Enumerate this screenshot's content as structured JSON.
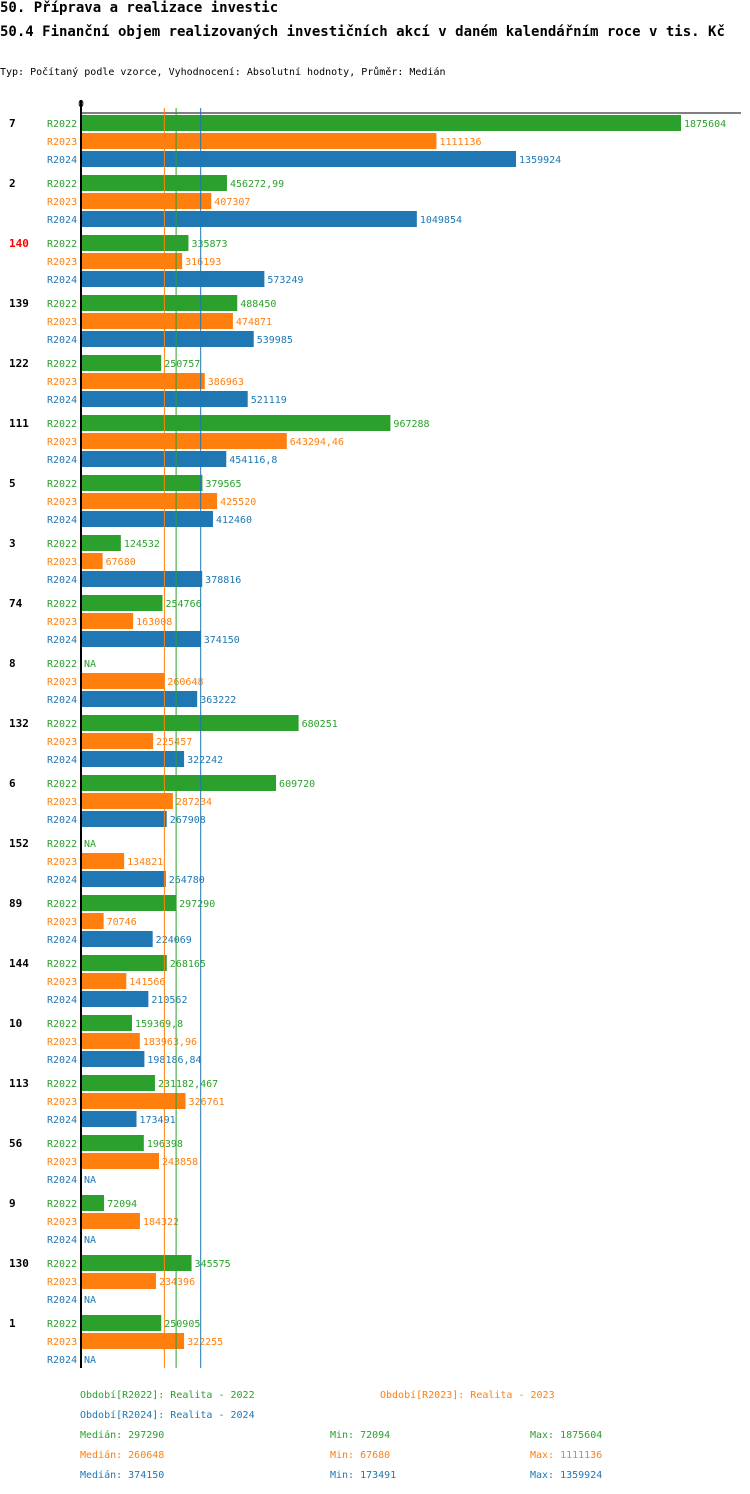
{
  "header": {
    "title": "50. Příprava a realizace investic",
    "subtitle": "50.4 Finanční objem realizovaných investičních akcí v daném kalendářním roce v tis. Kč",
    "info": "Typ: Počítaný podle vzorce, Vyhodnocení: Absolutní hodnoty, Průměr: Medián"
  },
  "colors": {
    "R2022": "#2ca02c",
    "R2023": "#ff7f0e",
    "R2024": "#1f77b4",
    "highlight": "#ff0000",
    "axis": "#000000"
  },
  "chart_data": {
    "type": "bar",
    "orientation": "horizontal",
    "axis_zero_label": "0",
    "xlim": [
      0,
      1875604
    ],
    "series_names": [
      "R2022",
      "R2023",
      "R2024"
    ],
    "highlighted_category": "140",
    "groups": [
      {
        "label": "7",
        "values": [
          1875604,
          1111136,
          1359924
        ],
        "labels": [
          "1875604",
          "1111136",
          "1359924"
        ]
      },
      {
        "label": "2",
        "values": [
          456272.99,
          407307,
          1049854
        ],
        "labels": [
          "456272,99",
          "407307",
          "1049854"
        ]
      },
      {
        "label": "140",
        "values": [
          335873,
          316193,
          573249
        ],
        "labels": [
          "335873",
          "316193",
          "573249"
        ]
      },
      {
        "label": "139",
        "values": [
          488450,
          474871,
          539985
        ],
        "labels": [
          "488450",
          "474871",
          "539985"
        ]
      },
      {
        "label": "122",
        "values": [
          250757,
          386963,
          521119
        ],
        "labels": [
          "250757",
          "386963",
          "521119"
        ]
      },
      {
        "label": "111",
        "values": [
          967288,
          643294.46,
          454116.8
        ],
        "labels": [
          "967288",
          "643294,46",
          "454116,8"
        ]
      },
      {
        "label": "5",
        "values": [
          379565,
          425520,
          412460
        ],
        "labels": [
          "379565",
          "425520",
          "412460"
        ]
      },
      {
        "label": "3",
        "values": [
          124532,
          67680,
          378816
        ],
        "labels": [
          "124532",
          "67680",
          "378816"
        ]
      },
      {
        "label": "74",
        "values": [
          254766,
          163008,
          374150
        ],
        "labels": [
          "254766",
          "163008",
          "374150"
        ]
      },
      {
        "label": "8",
        "values": [
          null,
          260648,
          363222
        ],
        "labels": [
          "NA",
          "260648",
          "363222"
        ]
      },
      {
        "label": "132",
        "values": [
          680251,
          225457,
          322242
        ],
        "labels": [
          "680251",
          "225457",
          "322242"
        ]
      },
      {
        "label": "6",
        "values": [
          609720,
          287234,
          267908
        ],
        "labels": [
          "609720",
          "287234",
          "267908"
        ]
      },
      {
        "label": "152",
        "values": [
          null,
          134821,
          264780
        ],
        "labels": [
          "NA",
          "134821",
          "264780"
        ]
      },
      {
        "label": "89",
        "values": [
          297290,
          70746,
          224069
        ],
        "labels": [
          "297290",
          "70746",
          "224069"
        ]
      },
      {
        "label": "144",
        "values": [
          268165,
          141566,
          210562
        ],
        "labels": [
          "268165",
          "141566",
          "210562"
        ]
      },
      {
        "label": "10",
        "values": [
          159369.8,
          183963.96,
          198186.84
        ],
        "labels": [
          "159369,8",
          "183963,96",
          "198186,84"
        ]
      },
      {
        "label": "113",
        "values": [
          231182.467,
          326761,
          173491
        ],
        "labels": [
          "231182,467",
          "326761",
          "173491"
        ]
      },
      {
        "label": "56",
        "values": [
          196398,
          243858,
          null
        ],
        "labels": [
          "196398",
          "243858",
          "NA"
        ]
      },
      {
        "label": "9",
        "values": [
          72094,
          184322,
          null
        ],
        "labels": [
          "72094",
          "184322",
          "NA"
        ]
      },
      {
        "label": "130",
        "values": [
          345575,
          234396,
          null
        ],
        "labels": [
          "345575",
          "234396",
          "NA"
        ]
      },
      {
        "label": "1",
        "values": [
          250905,
          322255,
          null
        ],
        "labels": [
          "250905",
          "322255",
          "NA"
        ]
      }
    ],
    "medians": {
      "R2022": 297290,
      "R2023": 260648,
      "R2024": 374150
    }
  },
  "legend": {
    "periods": [
      {
        "text": "Období[R2022]: Realita - 2022"
      },
      {
        "text": "Období[R2023]: Realita - 2023"
      },
      {
        "text": "Období[R2024]: Realita - 2024"
      }
    ],
    "stats": [
      {
        "median": "Medián: 297290",
        "min": "Min: 72094",
        "max": "Max: 1875604"
      },
      {
        "median": "Medián: 260648",
        "min": "Min: 67680",
        "max": "Max: 1111136"
      },
      {
        "median": "Medián: 374150",
        "min": "Min: 173491",
        "max": "Max: 1359924"
      }
    ]
  }
}
